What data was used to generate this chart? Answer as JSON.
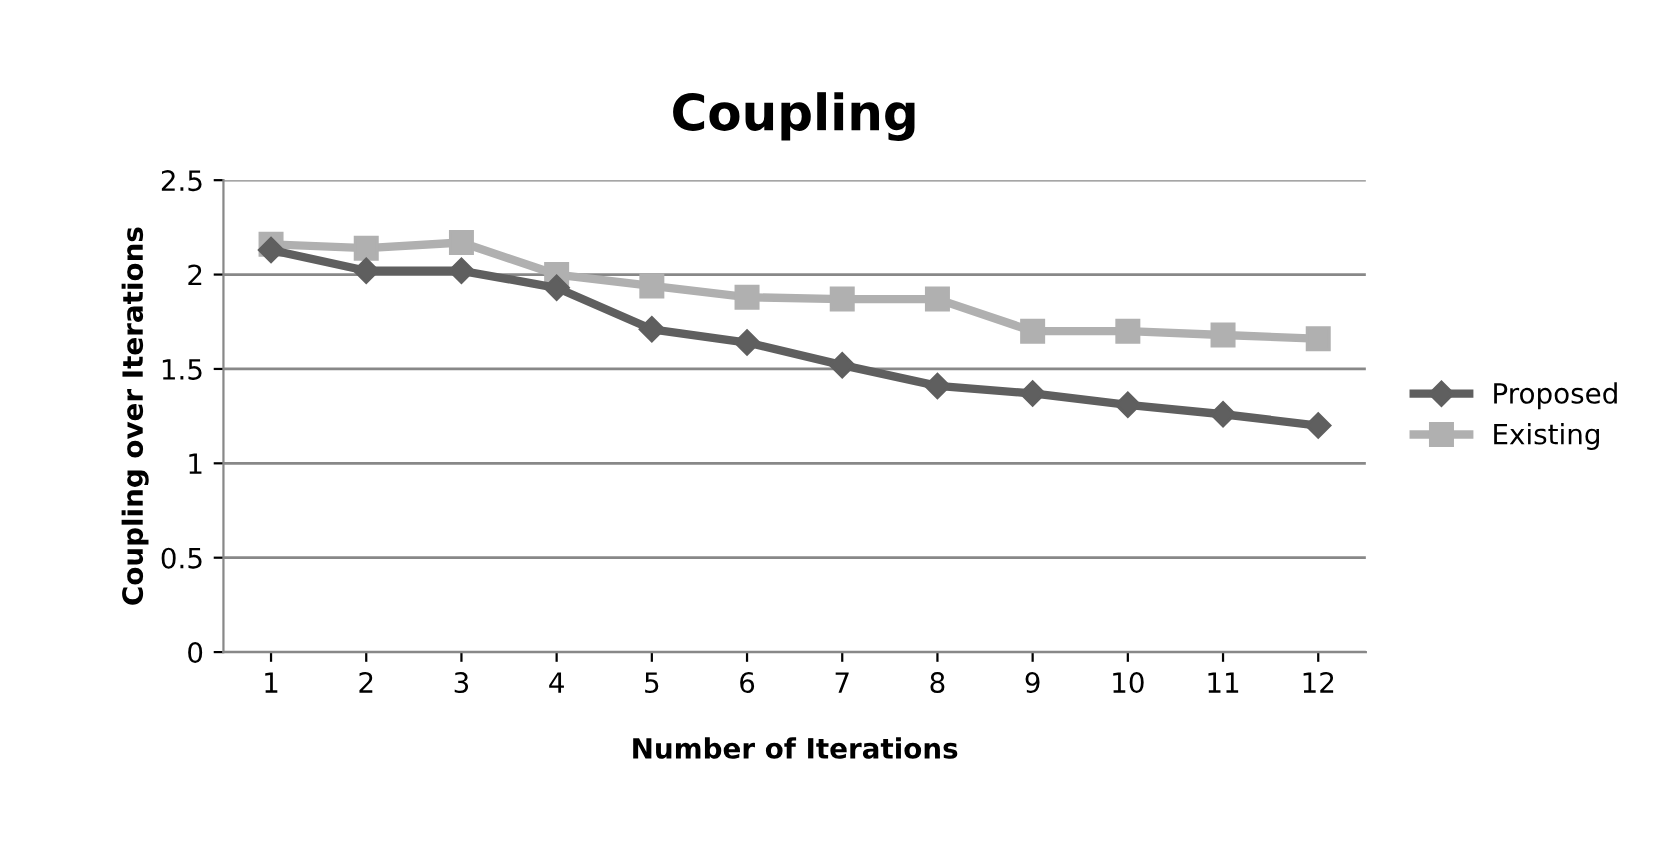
{
  "chart_data": {
    "type": "line",
    "title": "Coupling",
    "xlabel": "Number of Iterations",
    "ylabel": "Coupling over Iterations",
    "categories": [
      "1",
      "2",
      "3",
      "4",
      "5",
      "6",
      "7",
      "8",
      "9",
      "10",
      "11",
      "12"
    ],
    "series": [
      {
        "name": "Proposed",
        "color": "#5f5f5f",
        "marker": "diamond",
        "values": [
          2.13,
          2.02,
          2.02,
          1.93,
          1.71,
          1.64,
          1.52,
          1.41,
          1.37,
          1.31,
          1.26,
          1.2
        ]
      },
      {
        "name": "Existing",
        "color": "#b0b0b0",
        "marker": "square",
        "values": [
          2.16,
          2.14,
          2.17,
          2.0,
          1.94,
          1.88,
          1.87,
          1.87,
          1.7,
          1.7,
          1.68,
          1.66
        ]
      }
    ],
    "ylim": [
      0,
      2.5
    ],
    "yticks": [
      0,
      0.5,
      1,
      1.5,
      2,
      2.5
    ],
    "grid": "y",
    "legend": "right",
    "line_style": "solid"
  }
}
